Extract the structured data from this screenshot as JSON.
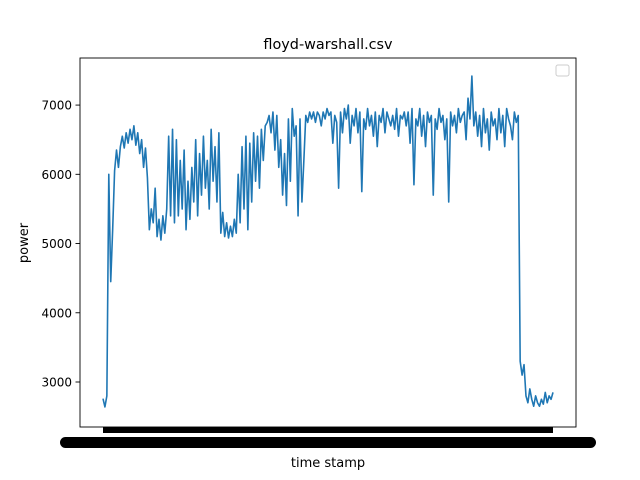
{
  "chart_data": {
    "type": "line",
    "title": "floyd-warshall.csv",
    "xlabel": "time stamp",
    "ylabel": "power",
    "ylim": [
      2350,
      7680
    ],
    "yticks": [
      3000,
      4000,
      5000,
      6000,
      7000
    ],
    "legend": "top-right",
    "legend_entries": [],
    "series": [
      {
        "color": "#1f77b4",
        "values": [
          2760,
          2640,
          2800,
          6000,
          4450,
          5200,
          6050,
          6350,
          6100,
          6400,
          6550,
          6380,
          6600,
          6450,
          6650,
          6500,
          6700,
          6420,
          6600,
          6300,
          6500,
          6100,
          6380,
          5950,
          5200,
          5500,
          5300,
          5800,
          5100,
          5350,
          5050,
          5400,
          5150,
          5500,
          6550,
          5400,
          6650,
          5300,
          6500,
          5400,
          6200,
          5500,
          6350,
          5200,
          5900,
          5350,
          6100,
          5600,
          6500,
          5400,
          6300,
          5700,
          6550,
          5800,
          6200,
          5500,
          6650,
          5900,
          6400,
          5600,
          6600,
          5150,
          5450,
          5100,
          5300,
          5080,
          5250,
          5100,
          5350,
          5150,
          6000,
          5300,
          6400,
          5500,
          6550,
          5200,
          6450,
          5600,
          6600,
          5900,
          6550,
          5800,
          6650,
          6200,
          6700,
          6750,
          6850,
          6600,
          6900,
          6350,
          6850,
          6100,
          6500,
          5700,
          6300,
          5550,
          6800,
          5900,
          6950,
          6550,
          6700,
          5400,
          6800,
          5600,
          6200,
          6850,
          6750,
          6900,
          6800,
          6900,
          6750,
          6900,
          6850,
          6700,
          6900,
          6800,
          6950,
          6850,
          6900,
          6450,
          6850,
          6750,
          5800,
          6900,
          6600,
          6950,
          6800,
          7000,
          6450,
          6850,
          6700,
          6950,
          6600,
          6900,
          5750,
          6800,
          6650,
          6950,
          6700,
          6850,
          6550,
          6900,
          6400,
          6850,
          6750,
          6950,
          6600,
          6900,
          6800,
          6700,
          6850,
          6650,
          6950,
          6550,
          6850,
          6800,
          6900,
          6700,
          6900,
          6450,
          6950,
          5850,
          6800,
          6700,
          6950,
          6550,
          6850,
          6400,
          6900,
          6750,
          6850,
          5700,
          6800,
          6650,
          6950,
          6750,
          6850,
          6500,
          6800,
          5600,
          6900,
          6700,
          6850,
          6600,
          6950,
          6750,
          6850,
          6900,
          6500,
          7100,
          6800,
          7420,
          6700,
          6900,
          6550,
          6850,
          6400,
          6950,
          6600,
          6800,
          6350,
          6900,
          6700,
          6800,
          6500,
          6950,
          6600,
          6850,
          6400,
          6950,
          6800,
          6700,
          6500,
          6900,
          6750,
          6850,
          3300,
          3100,
          3250,
          2800,
          2700,
          2900,
          2750,
          2650,
          2800,
          2700,
          2650,
          2750,
          2680,
          2850,
          2700,
          2800,
          2750,
          2850
        ]
      }
    ]
  }
}
